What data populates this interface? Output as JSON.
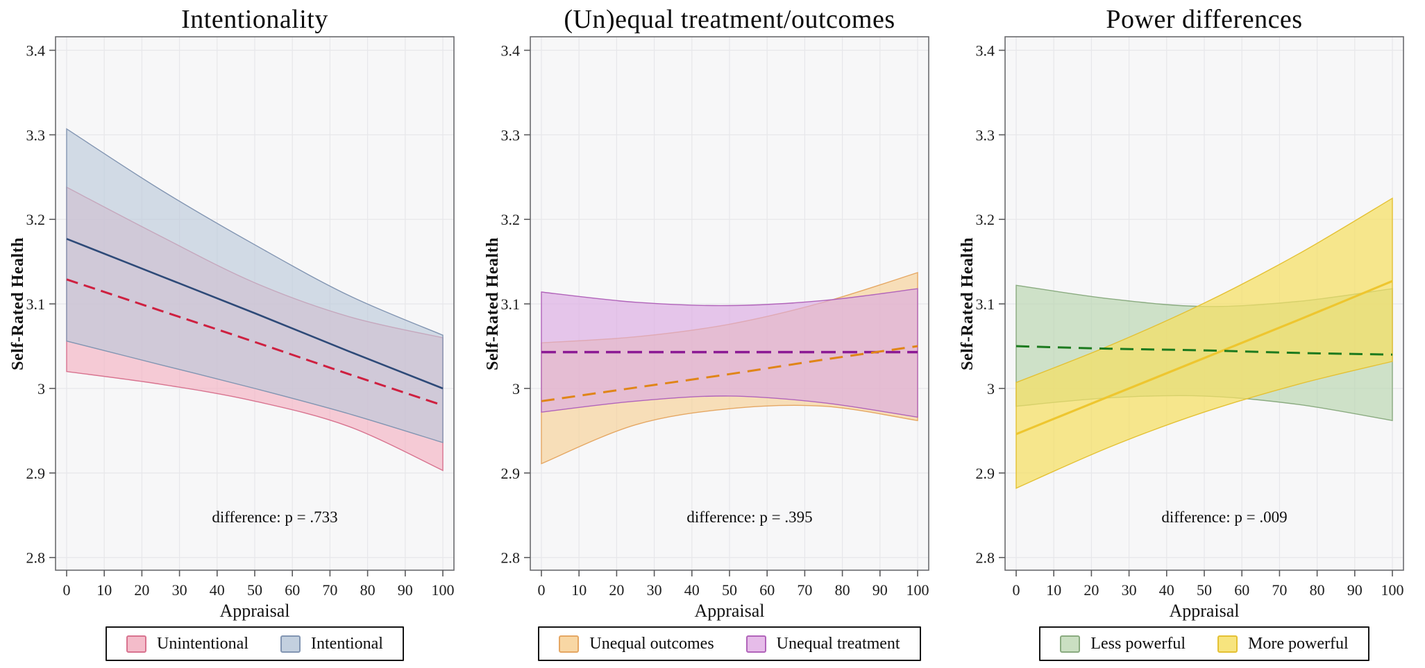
{
  "figure": {
    "background": "#ffffff",
    "plot_background": "#f7f7f8",
    "grid_color": "#e7e7ea",
    "frame_color": "#6a6b6e"
  },
  "chart_data": [
    {
      "type": "line",
      "title": "Intentionality",
      "xlabel": "Appraisal",
      "ylabel": "Self-Rated Health",
      "annotation": "difference: p = .733",
      "xlim": [
        0,
        100
      ],
      "ylim": [
        2.785,
        3.416
      ],
      "x_ticks": [
        0,
        10,
        20,
        30,
        40,
        50,
        60,
        70,
        80,
        90,
        100
      ],
      "y_ticks": [
        2.8,
        2.9,
        3.0,
        3.1,
        3.2,
        3.3,
        3.4
      ],
      "y_tick_labels": [
        "2.8",
        "2.9",
        "3",
        "3.1",
        "3.2",
        "3.3",
        "3.4"
      ],
      "grid": true,
      "legend_position": "bottom",
      "x": [
        0,
        25,
        50,
        75,
        100
      ],
      "series": [
        {
          "name": "Unintentional",
          "mean": [
            3.129,
            3.092,
            3.055,
            3.017,
            2.98
          ],
          "ci_low": [
            3.02,
            3.005,
            2.985,
            2.955,
            2.903
          ],
          "ci_high": [
            3.238,
            3.18,
            3.125,
            3.085,
            3.06
          ],
          "style": {
            "fill": "#f3afc0",
            "fill_opacity": 0.62,
            "edge": "#d8738f",
            "line_color": "#ce2040",
            "line_width": 3,
            "line_dash": "17,9",
            "swatch_fill": "#f4bcca"
          }
        },
        {
          "name": "Intentional",
          "mean": [
            3.177,
            3.133,
            3.089,
            3.044,
            3.0
          ],
          "ci_low": [
            3.056,
            3.028,
            3.0,
            2.97,
            2.936
          ],
          "ci_high": [
            3.307,
            3.235,
            3.17,
            3.11,
            3.063
          ],
          "style": {
            "fill": "#b9c8da",
            "fill_opacity": 0.62,
            "edge": "#8295b2",
            "line_color": "#2e4a78",
            "line_width": 2.6,
            "line_dash": null,
            "swatch_fill": "#c3d0df"
          }
        }
      ]
    },
    {
      "type": "line",
      "title": "(Un)equal treatment/outcomes",
      "xlabel": "Appraisal",
      "ylabel": "Self-Rated Health",
      "annotation": "difference: p = .395",
      "xlim": [
        0,
        100
      ],
      "ylim": [
        2.785,
        3.416
      ],
      "x_ticks": [
        0,
        10,
        20,
        30,
        40,
        50,
        60,
        70,
        80,
        90,
        100
      ],
      "y_ticks": [
        2.8,
        2.9,
        3.0,
        3.1,
        3.2,
        3.3,
        3.4
      ],
      "y_tick_labels": [
        "2.8",
        "2.9",
        "3",
        "3.1",
        "3.2",
        "3.3",
        "3.4"
      ],
      "grid": true,
      "legend_position": "bottom",
      "x": [
        0,
        25,
        50,
        75,
        100
      ],
      "series": [
        {
          "name": "Unequal outcomes",
          "mean": [
            2.985,
            3.001,
            3.017,
            3.034,
            3.05
          ],
          "ci_low": [
            2.911,
            2.957,
            2.976,
            2.979,
            2.962
          ],
          "ci_high": [
            3.054,
            3.061,
            3.076,
            3.102,
            3.137
          ],
          "style": {
            "fill": "#f7cf92",
            "fill_opacity": 0.62,
            "edge": "#e5a763",
            "line_color": "#e08517",
            "line_width": 3,
            "line_dash": "19,11",
            "swatch_fill": "#f8d7a4"
          }
        },
        {
          "name": "Unequal treatment",
          "mean": [
            3.043,
            3.043,
            3.043,
            3.043,
            3.043
          ],
          "ci_low": [
            2.972,
            2.985,
            2.991,
            2.983,
            2.966
          ],
          "ci_high": [
            3.114,
            3.102,
            3.098,
            3.104,
            3.118
          ],
          "style": {
            "fill": "#dcabe2",
            "fill_opacity": 0.65,
            "edge": "#b164ba",
            "line_color": "#8c1a94",
            "line_width": 3.5,
            "line_dash": "21,10",
            "swatch_fill": "#e6bce9"
          }
        }
      ]
    },
    {
      "type": "line",
      "title": "Power differences",
      "xlabel": "Appraisal",
      "ylabel": "Self-Rated Health",
      "annotation": "difference: p = .009",
      "xlim": [
        0,
        100
      ],
      "ylim": [
        2.785,
        3.416
      ],
      "x_ticks": [
        0,
        10,
        20,
        30,
        40,
        50,
        60,
        70,
        80,
        90,
        100
      ],
      "y_ticks": [
        2.8,
        2.9,
        3.0,
        3.1,
        3.2,
        3.3,
        3.4
      ],
      "y_tick_labels": [
        "2.8",
        "2.9",
        "3",
        "3.1",
        "3.2",
        "3.3",
        "3.4"
      ],
      "grid": true,
      "legend_position": "bottom",
      "x": [
        0,
        25,
        50,
        75,
        100
      ],
      "series": [
        {
          "name": "Less powerful",
          "mean": [
            3.05,
            3.047,
            3.045,
            3.042,
            3.04
          ],
          "ci_low": [
            2.979,
            2.989,
            2.991,
            2.981,
            2.962
          ],
          "ci_high": [
            3.122,
            3.106,
            3.097,
            3.103,
            3.118
          ],
          "style": {
            "fill": "#b5d3ab",
            "fill_opacity": 0.62,
            "edge": "#8aab80",
            "line_color": "#1c7a1e",
            "line_width": 3,
            "line_dash": "19,11",
            "swatch_fill": "#cadfc2"
          }
        },
        {
          "name": "More powerful",
          "mean": [
            2.946,
            2.991,
            3.036,
            3.081,
            3.127
          ],
          "ci_low": [
            2.882,
            2.931,
            2.972,
            3.005,
            3.032
          ],
          "ci_high": [
            3.007,
            3.051,
            3.101,
            3.159,
            3.225
          ],
          "style": {
            "fill": "#f5df62",
            "fill_opacity": 0.72,
            "edge": "#e4c134",
            "line_color": "#eec62f",
            "line_width": 3.2,
            "line_dash": null,
            "swatch_fill": "#f7e47e"
          }
        }
      ]
    }
  ]
}
